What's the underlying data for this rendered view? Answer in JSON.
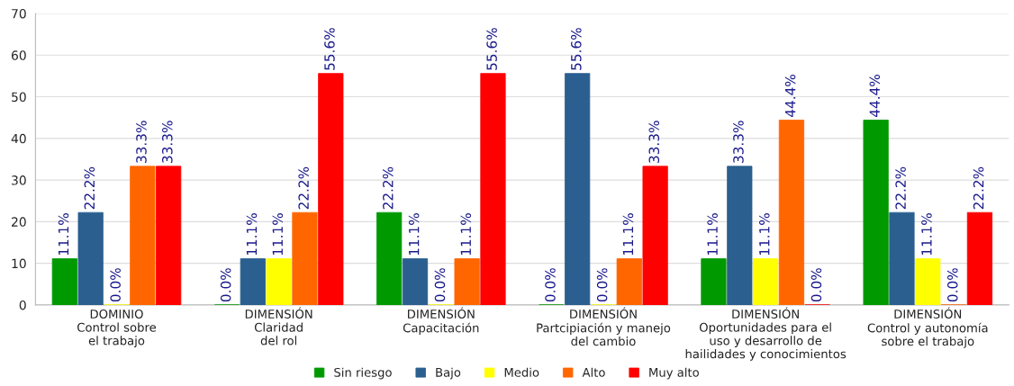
{
  "chart_data": {
    "type": "bar",
    "categories": [
      "DOMINIO\nControl sobre\nel trabajo",
      "DIMENSIÓN\nClaridad\ndel rol",
      "DIMENSIÓN\nCapacitación",
      "DIMENSIÓN\nPartcipiación y manejo\ndel cambio",
      "DIMENSIÓN\nOportunidades para el\nuso y desarrollo de\nhailidades y conocimientos",
      "DIMENSIÓN\nControl y autonomía\nsobre el trabajo"
    ],
    "series": [
      {
        "name": "Sin riesgo",
        "color": "#009900",
        "values": [
          11.1,
          0.0,
          22.2,
          0.0,
          11.1,
          44.4
        ],
        "value_labels": [
          "11.1%",
          "0.0%",
          "22.2%",
          "0.0%",
          "11.1%",
          "44.4%"
        ]
      },
      {
        "name": "Bajo",
        "color": "#2a5f8f",
        "values": [
          22.2,
          11.1,
          11.1,
          55.6,
          33.3,
          22.2
        ],
        "value_labels": [
          "22.2%",
          "11.1%",
          "11.1%",
          "55.6%",
          "33.3%",
          "22.2%"
        ]
      },
      {
        "name": "Medio",
        "color": "#ffff00",
        "values": [
          0.0,
          11.1,
          0.0,
          0.0,
          11.1,
          11.1
        ],
        "value_labels": [
          "0.0%",
          "11.1%",
          "0.0%",
          "0.0%",
          "11.1%",
          "11.1%"
        ]
      },
      {
        "name": "Alto",
        "color": "#ff6600",
        "values": [
          33.3,
          22.2,
          11.1,
          11.1,
          44.4,
          0.0
        ],
        "value_labels": [
          "33.3%",
          "22.2%",
          "11.1%",
          "11.1%",
          "44.4%",
          "0.0%"
        ]
      },
      {
        "name": "Muy alto",
        "color": "#ff0000",
        "values": [
          33.3,
          55.6,
          55.6,
          33.3,
          0.0,
          22.2
        ],
        "value_labels": [
          "33.3%",
          "55.6%",
          "55.6%",
          "33.3%",
          "0.0%",
          "22.2%"
        ]
      }
    ],
    "ylim": [
      0,
      70
    ],
    "yticks": [
      0,
      10,
      20,
      30,
      40,
      50,
      60,
      70
    ],
    "grid": "y",
    "legend": "bottom"
  }
}
